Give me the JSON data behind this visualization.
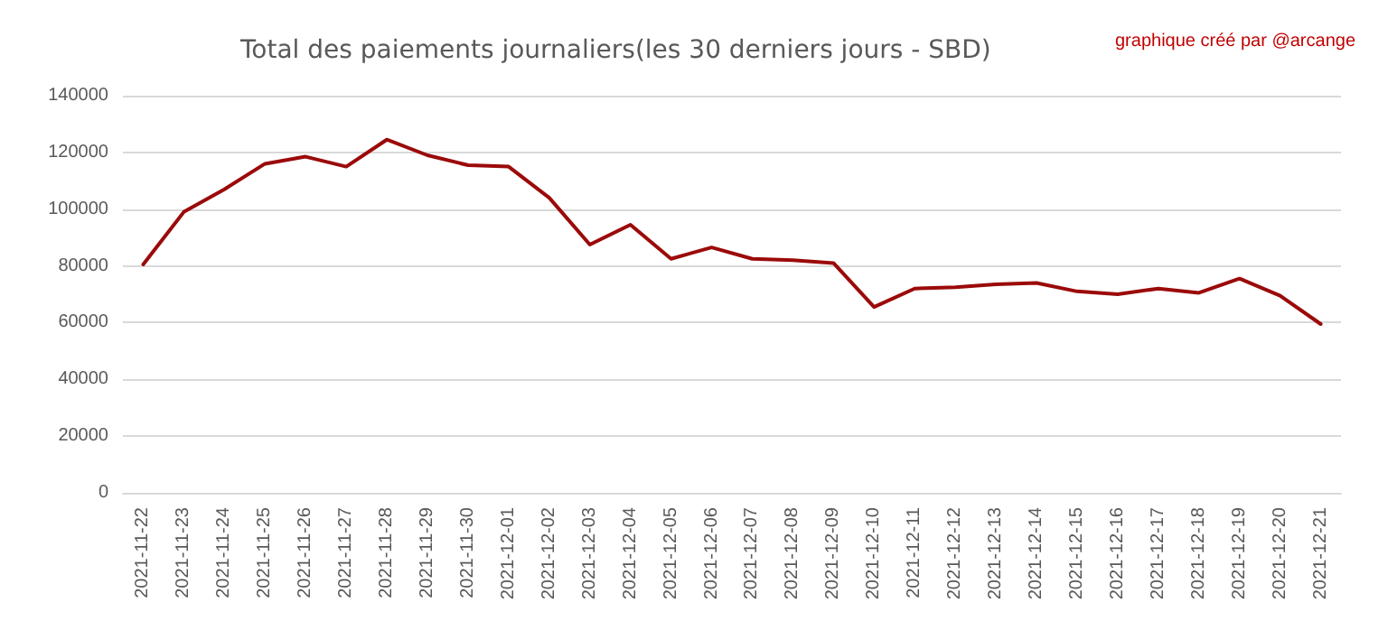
{
  "chart_data": {
    "type": "line",
    "title": "Total des paiements journaliers(les 30 derniers jours - SBD)",
    "annotations": [
      "graphique créé par @arcange"
    ],
    "categories": [
      "2021-11-22",
      "2021-11-23",
      "2021-11-24",
      "2021-11-25",
      "2021-11-26",
      "2021-11-27",
      "2021-11-28",
      "2021-11-29",
      "2021-11-30",
      "2021-12-01",
      "2021-12-02",
      "2021-12-03",
      "2021-12-04",
      "2021-12-05",
      "2021-12-06",
      "2021-12-07",
      "2021-12-08",
      "2021-12-09",
      "2021-12-10",
      "2021-12-11",
      "2021-12-12",
      "2021-12-13",
      "2021-12-14",
      "2021-12-15",
      "2021-12-16",
      "2021-12-17",
      "2021-12-18",
      "2021-12-19",
      "2021-12-20",
      "2021-12-21"
    ],
    "series": [
      {
        "color": "#9b0a0a",
        "values": [
          80500,
          99000,
          107000,
          116000,
          118500,
          115000,
          124500,
          119000,
          115500,
          115000,
          104000,
          87500,
          94500,
          82500,
          86500,
          82500,
          82000,
          81000,
          65500,
          72000,
          72500,
          73500,
          74000,
          71000,
          70000,
          72000,
          70500,
          75500,
          69500,
          59500
        ]
      }
    ],
    "ylim": [
      0,
      140000
    ],
    "yticks": [
      0,
      20000,
      40000,
      60000,
      80000,
      100000,
      120000,
      140000
    ],
    "grid": "y",
    "marker": "none",
    "line_style": "solid"
  }
}
